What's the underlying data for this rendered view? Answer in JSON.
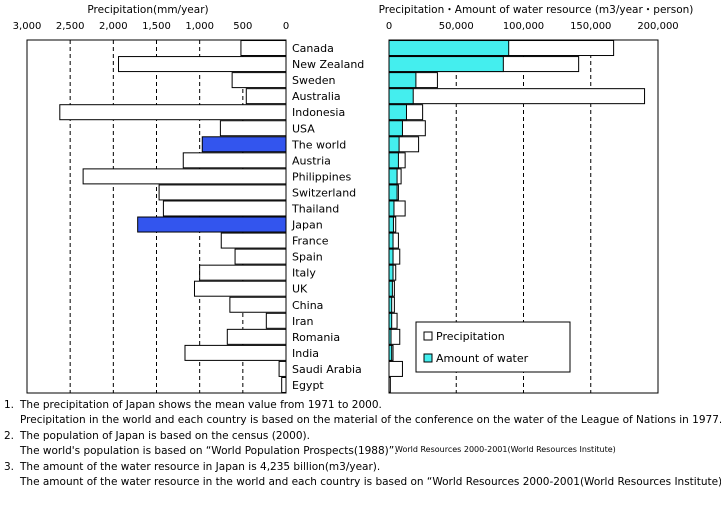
{
  "chart_data": [
    {
      "type": "bar",
      "orientation": "horizontal",
      "direction": "right-to-left",
      "title": "Precipitation(mm/year)",
      "xlim": [
        0,
        3000
      ],
      "xticks": [
        "3,000",
        "2,500",
        "2,000",
        "1,500",
        "1,000",
        "500",
        "0"
      ],
      "grid": true,
      "categories": [
        "Canada",
        "New Zealand",
        "Sweden",
        "Australia",
        "Indonesia",
        "USA",
        "The world",
        "Austria",
        "Philippines",
        "Switzerland",
        "Thailand",
        "Japan",
        "France",
        "Spain",
        "Italy",
        "UK",
        "China",
        "Iran",
        "Romania",
        "India",
        "Saudi Arabia",
        "Egypt"
      ],
      "values": [
        522,
        1940,
        624,
        460,
        2620,
        760,
        970,
        1190,
        2350,
        1470,
        1420,
        1718,
        750,
        590,
        1000,
        1060,
        650,
        228,
        680,
        1170,
        80,
        50
      ],
      "highlight": [
        "The world",
        "Japan"
      ],
      "highlight_color": "#3355ee",
      "bar_color": "#ffffff"
    },
    {
      "type": "bar",
      "orientation": "horizontal",
      "title": "Precipitation・Amount of water resource (m3/year・person)",
      "xlim": [
        0,
        200000
      ],
      "xticks": [
        "0",
        "50,000",
        "100,000",
        "150,000",
        "200,000"
      ],
      "grid": true,
      "categories": [
        "Canada",
        "New Zealand",
        "Sweden",
        "Australia",
        "Indonesia",
        "USA",
        "The world",
        "Austria",
        "Philippines",
        "Switzerland",
        "Thailand",
        "Japan",
        "France",
        "Spain",
        "Italy",
        "UK",
        "China",
        "Iran",
        "Romania",
        "India",
        "Saudi Arabia",
        "Egypt"
      ],
      "series": [
        {
          "name": "Precipitation",
          "color": "#ffffff",
          "values": [
            167000,
            141000,
            36000,
            190000,
            25000,
            27000,
            22000,
            12000,
            9000,
            7000,
            12000,
            5000,
            7000,
            8000,
            5000,
            4000,
            4000,
            6000,
            8000,
            3000,
            10000,
            1000
          ]
        },
        {
          "name": "Amount of water",
          "color": "#44eeee",
          "values": [
            89000,
            85000,
            20000,
            18000,
            13000,
            10000,
            7500,
            7000,
            6000,
            6000,
            3700,
            3300,
            3000,
            3000,
            3000,
            2500,
            2000,
            2000,
            1500,
            2000,
            100,
            100
          ]
        }
      ],
      "legend_position": "bottom-right"
    }
  ],
  "notes": [
    {
      "num": "1.",
      "text": "The precipitation of Japan shows the mean value from 1971 to 2000."
    },
    {
      "num": "",
      "text": "Precipitation in the world and each country is based on the material of the conference on the water of the League of Nations in 1977."
    },
    {
      "num": "2.",
      "text": "The population of Japan is based on the census (2000)."
    },
    {
      "num": "",
      "text": "The world's population is based on “World Population Prospects(1988)”."
    },
    {
      "num": "",
      "text": "World Resources 2000-2001(World Resources Institute)",
      "small": true
    },
    {
      "num": "3.",
      "text": "The amount of the water resource in Japan is 4,235 billion(m3/year)."
    },
    {
      "num": "",
      "text": "The amount of the water resource in the world and each country is based on “World Resources 2000-2001(World Resources Institute)”"
    }
  ]
}
